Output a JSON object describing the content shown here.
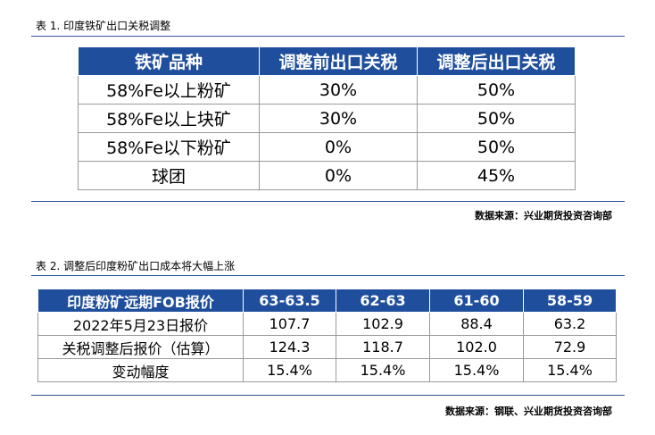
{
  "caption1": "表 1. 印度铁矿出口关税调整",
  "table1": {
    "header": [
      "铁矿品种",
      "调整前出口关税",
      "调整后出口关税"
    ],
    "rows": [
      [
        "58%Fe以上粉矿",
        "30%",
        "50%"
      ],
      [
        "58%Fe以上块矿",
        "30%",
        "50%"
      ],
      [
        "58%Fe以下粉矿",
        "0%",
        "50%"
      ],
      [
        "球团",
        "0%",
        "45%"
      ]
    ]
  },
  "source1": "数据来源：兴业期货投资咨询部",
  "caption2": "表 2. 调整后印度粉矿出口成本将大幅上涨",
  "table2": {
    "header": [
      "印度粉矿远期FOB报价",
      "63-63.5",
      "62-63",
      "61-60",
      "58-59"
    ],
    "rows": [
      [
        "2022年5月23日报价",
        "107.7",
        "102.9",
        "88.4",
        "63.2"
      ],
      [
        "关税调整后报价（估算）",
        "124.3",
        "118.7",
        "102.0",
        "72.9"
      ],
      [
        "变动幅度",
        "15.4%",
        "15.4%",
        "15.4%",
        "15.4%"
      ]
    ]
  },
  "source2": "数据来源：钢联、兴业期货投资咨询部"
}
